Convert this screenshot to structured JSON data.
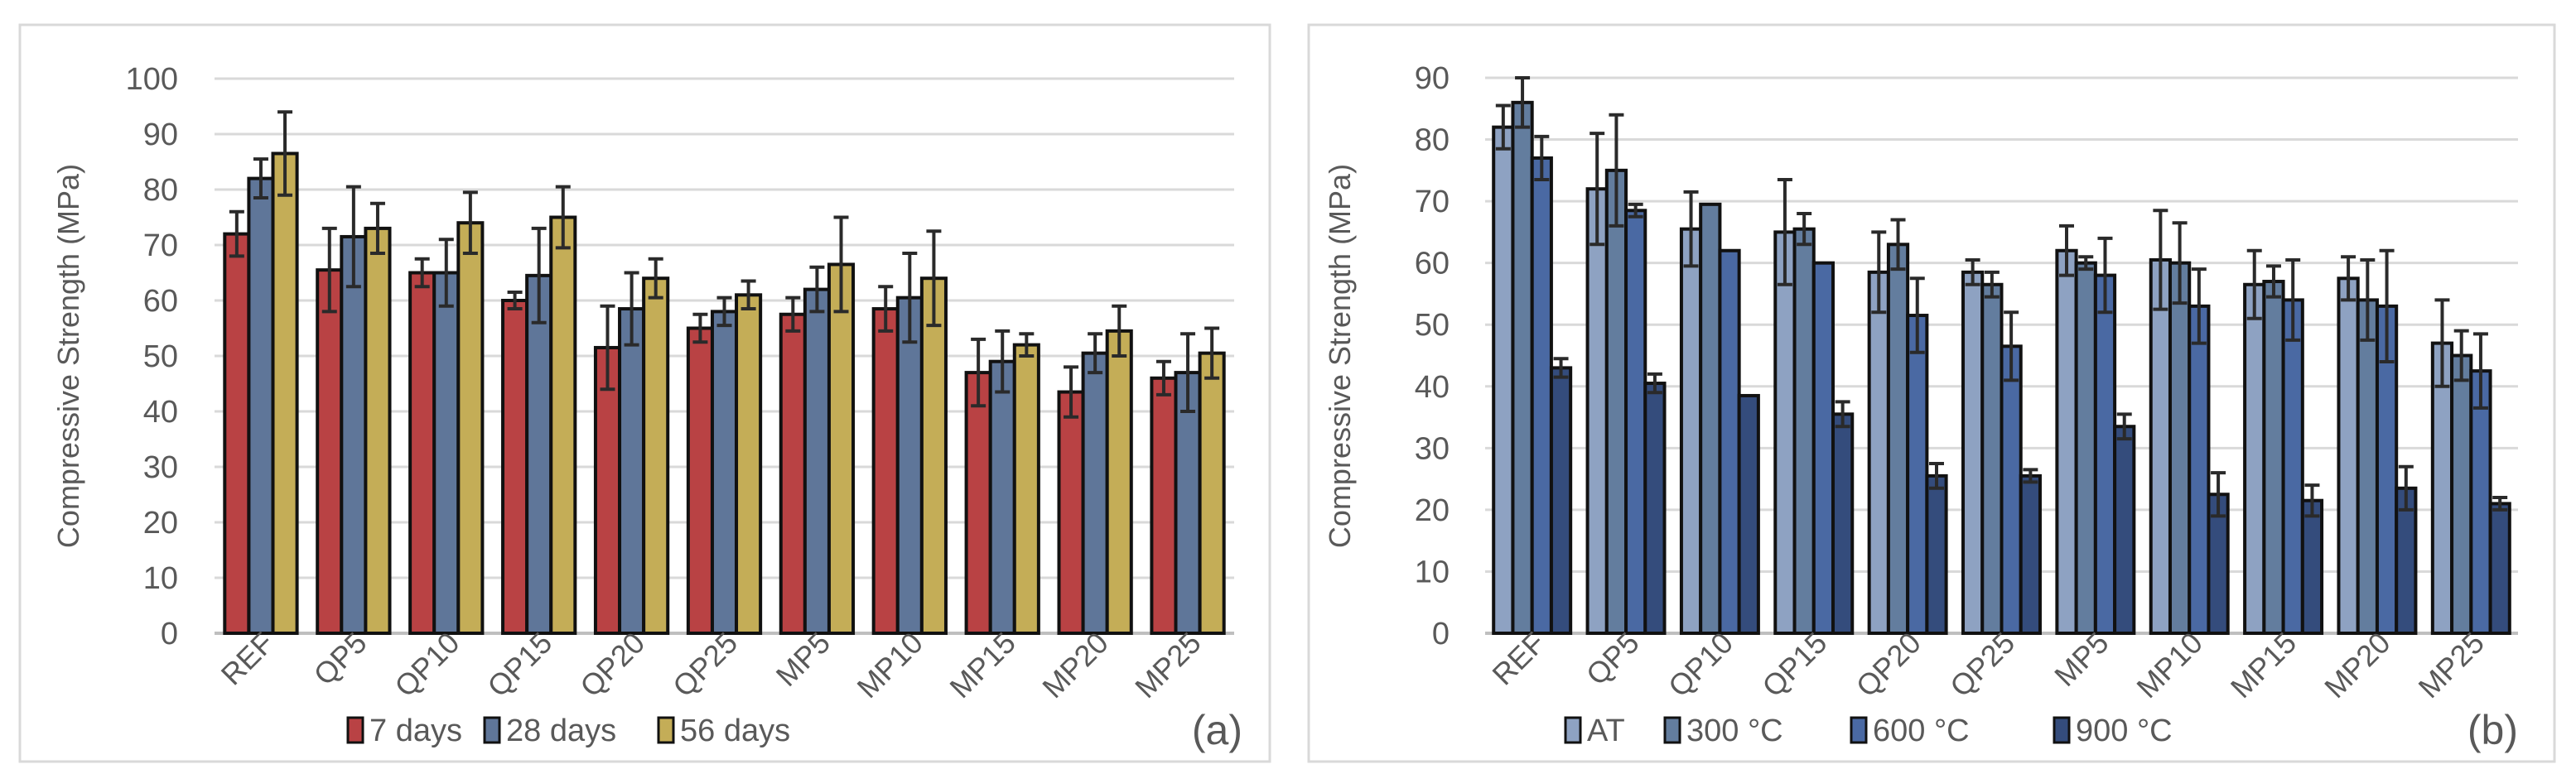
{
  "chart_data": [
    {
      "type": "bar",
      "panel_label": "(a)",
      "ylabel": "Compressive Strength (MPa)",
      "ylim": [
        0,
        100
      ],
      "ytick_step": 10,
      "grid": true,
      "legend_position": "bottom",
      "categories": [
        "REF",
        "QP5",
        "QP10",
        "QP15",
        "QP20",
        "QP25",
        "MP5",
        "MP10",
        "MP15",
        "MP20",
        "MP25"
      ],
      "series": [
        {
          "name": "7 days",
          "color": "#b94244",
          "values": [
            72,
            65.5,
            65,
            60,
            51.5,
            55,
            57.5,
            58.5,
            47,
            43.5,
            46
          ],
          "errors": [
            4,
            7.5,
            2.5,
            1.5,
            7.5,
            2.5,
            3,
            4,
            6,
            4.5,
            3
          ]
        },
        {
          "name": "28 days",
          "color": "#5f7699",
          "values": [
            82,
            71.5,
            65,
            64.5,
            58.5,
            58,
            62,
            60.5,
            49,
            50.5,
            47
          ],
          "errors": [
            3.5,
            9,
            6,
            8.5,
            6.5,
            2.5,
            4,
            8,
            5.5,
            3.5,
            7
          ]
        },
        {
          "name": "56 days",
          "color": "#c4ad57",
          "values": [
            86.5,
            73,
            74,
            75,
            64,
            61,
            66.5,
            64,
            52,
            54.5,
            50.5
          ],
          "errors": [
            7.5,
            4.5,
            5.5,
            5.5,
            3.5,
            2.5,
            8.5,
            8.5,
            2,
            4.5,
            4.5
          ]
        }
      ]
    },
    {
      "type": "bar",
      "panel_label": "(b)",
      "ylabel": "Compressive Strength (MPa)",
      "ylim": [
        0,
        90
      ],
      "ytick_step": 10,
      "grid": true,
      "legend_position": "bottom",
      "categories": [
        "REF",
        "QP5",
        "QP10",
        "QP15",
        "QP20",
        "QP25",
        "MP5",
        "MP10",
        "MP15",
        "MP20",
        "MP25"
      ],
      "series": [
        {
          "name": "AT",
          "color": "#8ea2c2",
          "values": [
            82,
            72,
            65.5,
            65,
            58.5,
            58.5,
            62,
            60.5,
            56.5,
            57.5,
            47
          ],
          "errors": [
            3.5,
            9,
            6,
            8.5,
            6.5,
            2,
            4,
            8,
            5.5,
            3.5,
            7
          ]
        },
        {
          "name": "300  °C",
          "color": "#637d9e",
          "values": [
            86,
            75,
            69.5,
            65.5,
            63,
            56.5,
            60,
            60,
            57,
            54,
            45
          ],
          "errors": [
            4,
            9,
            0,
            2.5,
            4,
            2,
            1,
            6.5,
            2.5,
            6.5,
            4
          ]
        },
        {
          "name": "600  °C",
          "color": "#4a69a3",
          "values": [
            77,
            68.5,
            62,
            60,
            51.5,
            46.5,
            58,
            53,
            54,
            53,
            42.5
          ],
          "errors": [
            3.5,
            1,
            0,
            0,
            6,
            5.5,
            6,
            6,
            6.5,
            9,
            6
          ]
        },
        {
          "name": "900  °C",
          "color": "#344c7c",
          "values": [
            43,
            40.5,
            38.5,
            35.5,
            25.5,
            25.5,
            33.5,
            22.5,
            21.5,
            23.5,
            21
          ],
          "errors": [
            1.5,
            1.5,
            0,
            2,
            2,
            1,
            2,
            3.5,
            2.5,
            3.5,
            1
          ]
        }
      ]
    }
  ]
}
